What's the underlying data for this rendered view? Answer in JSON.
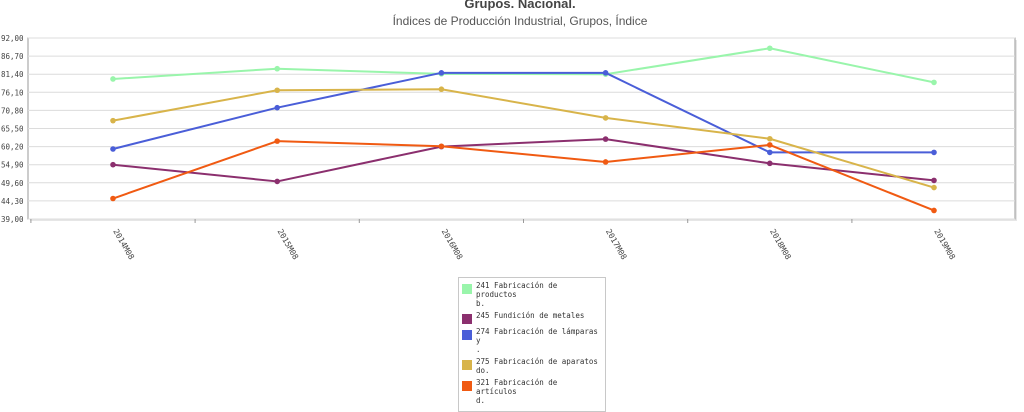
{
  "header": {
    "title": "Grupos. Nacional.",
    "subtitle": "Índices de Producción Industrial, Grupos, Índice"
  },
  "chart_data": {
    "type": "line",
    "title": "Grupos. Nacional.",
    "subtitle": "Índices de Producción Industrial, Grupos, Índice",
    "categories": [
      "2014M08",
      "2015M08",
      "2016M08",
      "2017M08",
      "2018M08",
      "2019M08"
    ],
    "yticks": [
      "92,00",
      "86,70",
      "81,40",
      "76,10",
      "70,80",
      "65,50",
      "60,20",
      "54,90",
      "49,60",
      "44,30",
      "39,00"
    ],
    "ylim": [
      39.0,
      92.0
    ],
    "grid": true,
    "legend_position": "bottom-center",
    "series": [
      {
        "name": "241 Fabricación de productos\nb.",
        "color": "#99f5ab",
        "values": [
          80.0,
          83.0,
          81.5,
          81.4,
          89.0,
          79.0
        ]
      },
      {
        "name": "245 Fundición de metales",
        "color": "#8b2f6e",
        "values": [
          54.9,
          50.0,
          60.2,
          62.4,
          55.3,
          50.3
        ]
      },
      {
        "name": "274 Fabricación de lámparas y\n.",
        "color": "#4a5ed8",
        "values": [
          59.5,
          71.6,
          81.8,
          81.8,
          58.5,
          58.5
        ]
      },
      {
        "name": "275 Fabricación de aparatos\ndo.",
        "color": "#d8b44a",
        "values": [
          67.8,
          76.7,
          77.0,
          68.6,
          62.5,
          48.2
        ]
      },
      {
        "name": "321 Fabricación de artículos\nd.",
        "color": "#f05a12",
        "values": [
          45.0,
          61.8,
          60.3,
          55.7,
          60.7,
          41.5
        ]
      }
    ]
  }
}
